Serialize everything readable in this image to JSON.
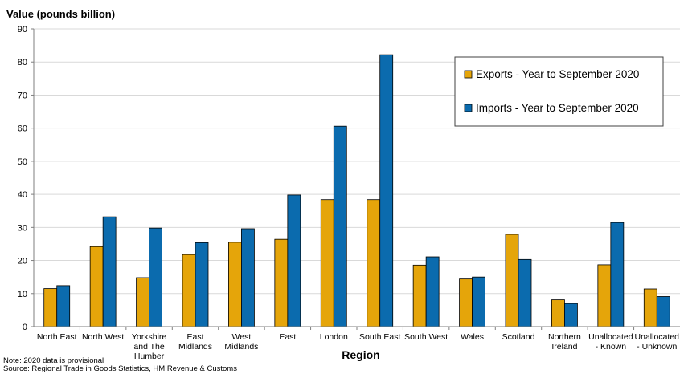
{
  "chart_data": {
    "type": "bar",
    "ylabel": "Value (pounds billion)",
    "xlabel": "Region",
    "ylim": [
      0,
      90
    ],
    "yticks": [
      0,
      10,
      20,
      30,
      40,
      50,
      60,
      70,
      80,
      90
    ],
    "grid": true,
    "legend_position": "top-right",
    "categories": [
      [
        "North East"
      ],
      [
        "North West"
      ],
      [
        "Yorkshire",
        "and The",
        "Humber"
      ],
      [
        "East",
        "Midlands"
      ],
      [
        "West",
        "Midlands"
      ],
      [
        "East"
      ],
      [
        "London"
      ],
      [
        "South East"
      ],
      [
        "South West"
      ],
      [
        "Wales"
      ],
      [
        "Scotland"
      ],
      [
        "Northern",
        "Ireland"
      ],
      [
        "Unallocated",
        "- Known"
      ],
      [
        "Unallocated",
        "- Unknown"
      ]
    ],
    "series": [
      {
        "name": "Exports - Year to September 2020",
        "color": "#E5A50A",
        "values": [
          11.5,
          24.2,
          14.8,
          21.8,
          25.5,
          26.4,
          38.4,
          38.4,
          18.6,
          14.4,
          27.9,
          8.1,
          18.7,
          11.4
        ]
      },
      {
        "name": "Imports - Year to September 2020",
        "color": "#0B6BAE",
        "values": [
          12.4,
          33.2,
          29.8,
          25.4,
          29.6,
          39.8,
          60.6,
          82.2,
          21.1,
          15.0,
          20.3,
          7.0,
          31.5,
          9.1
        ]
      }
    ]
  },
  "notes": {
    "line1": "Note: 2020 data is provisional",
    "line2": "Source: Regional Trade in Goods Statistics, HM Revenue & Customs"
  }
}
